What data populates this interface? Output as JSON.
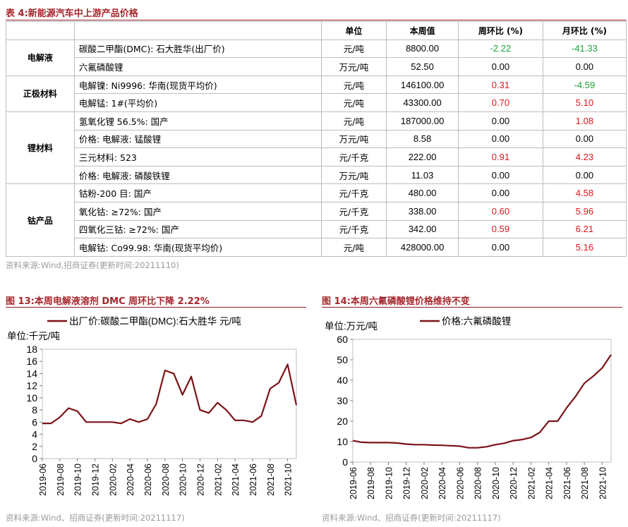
{
  "table": {
    "title": "表 4:新能源汽车中上游产品价格",
    "headers": [
      "单位",
      "本周值",
      "周环比 (%)",
      "月环比 (%)"
    ],
    "groups": [
      {
        "category": "电解液",
        "rows": [
          {
            "item": "碳酸二甲酯(DMC): 石大胜华(出厂价)",
            "unit": "元/吨",
            "value": "8800.00",
            "wow": "-2.22",
            "mom": "-41.33",
            "wow_color": "green",
            "mom_color": "green"
          },
          {
            "item": "六氟磷酸锂",
            "unit": "万元/吨",
            "value": "52.50",
            "wow": "0.00",
            "mom": "0.00",
            "wow_color": "black",
            "mom_color": "black"
          }
        ]
      },
      {
        "category": "正极材料",
        "rows": [
          {
            "item": "电解镍: Ni9996: 华南(现货平均价)",
            "unit": "元/吨",
            "value": "146100.00",
            "wow": "0.31",
            "mom": "-4.59",
            "wow_color": "red",
            "mom_color": "green"
          },
          {
            "item": "电解锰: 1#(平均价)",
            "unit": "元/吨",
            "value": "43300.00",
            "wow": "0.70",
            "mom": "5.10",
            "wow_color": "red",
            "mom_color": "red"
          }
        ]
      },
      {
        "category": "锂材料",
        "rows": [
          {
            "item": "氢氧化锂 56.5%: 国产",
            "unit": "元/吨",
            "value": "187000.00",
            "wow": "0.00",
            "mom": "1.08",
            "wow_color": "black",
            "mom_color": "red"
          },
          {
            "item": "价格: 电解液: 锰酸锂",
            "unit": "万元/吨",
            "value": "8.58",
            "wow": "0.00",
            "mom": "0.00",
            "wow_color": "black",
            "mom_color": "black"
          },
          {
            "item": "三元材料: 523",
            "unit": "元/千克",
            "value": "222.00",
            "wow": "0.91",
            "mom": "4.23",
            "wow_color": "red",
            "mom_color": "red"
          },
          {
            "item": "价格: 电解液: 磷酸铁锂",
            "unit": "万元/吨",
            "value": "11.03",
            "wow": "0.00",
            "mom": "0.00",
            "wow_color": "black",
            "mom_color": "black"
          }
        ]
      },
      {
        "category": "钴产品",
        "rows": [
          {
            "item": "钴粉-200 目: 国产",
            "unit": "元/千克",
            "value": "480.00",
            "wow": "0.00",
            "mom": "4.58",
            "wow_color": "black",
            "mom_color": "red"
          },
          {
            "item": "氧化钴: ≥72%: 国产",
            "unit": "元/千克",
            "value": "338.00",
            "wow": "0.60",
            "mom": "5.96",
            "wow_color": "red",
            "mom_color": "red"
          },
          {
            "item": "四氧化三钴: ≥72%: 国产",
            "unit": "元/千克",
            "value": "342.00",
            "wow": "0.59",
            "mom": "6.21",
            "wow_color": "red",
            "mom_color": "red"
          },
          {
            "item": "电解钴: Co99.98: 华南(现货平均价)",
            "unit": "元/吨",
            "value": "428000.00",
            "wow": "0.00",
            "mom": "5.16",
            "wow_color": "black",
            "mom_color": "red"
          }
        ]
      }
    ],
    "source": "资料来源:Wind,招商证券(更新时间:20211110)"
  },
  "colors": {
    "title": "#a6262c",
    "line": "#7b1218",
    "red": "#e3141c",
    "green": "#1aa13a"
  },
  "chart_data": [
    {
      "type": "line",
      "title": "图 13:本周电解液溶剂 DMC 周环比下降 2.22%",
      "unit_label": "单位:千元/吨",
      "series": [
        {
          "name": "出厂价:碳酸二甲酯(DMC):石大胜华 元/吨",
          "x": [
            "2019-06",
            "2019-07",
            "2019-08",
            "2019-09",
            "2019-10",
            "2019-11",
            "2019-12",
            "2020-01",
            "2020-02",
            "2020-03",
            "2020-04",
            "2020-05",
            "2020-06",
            "2020-07",
            "2020-08",
            "2020-09",
            "2020-10",
            "2020-11",
            "2020-12",
            "2021-01",
            "2021-02",
            "2021-03",
            "2021-04",
            "2021-05",
            "2021-06",
            "2021-07",
            "2021-08",
            "2021-09",
            "2021-10",
            "2021-11"
          ],
          "values": [
            5.8,
            5.8,
            6.8,
            8.3,
            7.8,
            6.0,
            6.0,
            6.0,
            6.0,
            5.8,
            6.5,
            6.0,
            6.5,
            9.0,
            14.5,
            14.0,
            10.5,
            13.5,
            8.0,
            7.5,
            9.2,
            8.0,
            6.3,
            6.3,
            6.0,
            7.0,
            11.5,
            12.5,
            15.5,
            8.8
          ]
        }
      ],
      "x_ticks": [
        "2019-06",
        "2019-08",
        "2019-10",
        "2019-12",
        "2020-02",
        "2020-04",
        "2020-06",
        "2020-08",
        "2020-10",
        "2020-12",
        "2021-02",
        "2021-04",
        "2021-06",
        "2021-08",
        "2021-10"
      ],
      "ylim": [
        0,
        18
      ],
      "y_ticks": [
        0,
        2,
        4,
        6,
        8,
        10,
        12,
        14,
        16,
        18
      ],
      "source": "资料来源:Wind、招商证券(更新时间:20211117)"
    },
    {
      "type": "line",
      "title": "图 14:本周六氟磷酸锂价格维持不变",
      "unit_label": "单位:万元/吨",
      "series": [
        {
          "name": "价格:六氟磷酸锂",
          "x": [
            "2019-06",
            "2019-07",
            "2019-08",
            "2019-09",
            "2019-10",
            "2019-11",
            "2019-12",
            "2020-01",
            "2020-02",
            "2020-03",
            "2020-04",
            "2020-05",
            "2020-06",
            "2020-07",
            "2020-08",
            "2020-09",
            "2020-10",
            "2020-11",
            "2020-12",
            "2021-01",
            "2021-02",
            "2021-03",
            "2021-04",
            "2021-05",
            "2021-06",
            "2021-07",
            "2021-08",
            "2021-09",
            "2021-10",
            "2021-11"
          ],
          "values": [
            10.5,
            9.7,
            9.5,
            9.5,
            9.5,
            9.3,
            8.8,
            8.5,
            8.5,
            8.3,
            8.2,
            8.0,
            7.8,
            7.0,
            7.0,
            7.5,
            8.5,
            9.2,
            10.5,
            11.0,
            12.0,
            14.5,
            20.0,
            20.0,
            26.5,
            32.0,
            38.5,
            42.0,
            46.0,
            52.5
          ]
        }
      ],
      "x_ticks": [
        "2019-06",
        "2019-08",
        "2019-10",
        "2019-12",
        "2020-02",
        "2020-04",
        "2020-06",
        "2020-08",
        "2020-10",
        "2020-12",
        "2021-02",
        "2021-04",
        "2021-06",
        "2021-08",
        "2021-10"
      ],
      "ylim": [
        0,
        60
      ],
      "y_ticks": [
        0,
        10,
        20,
        30,
        40,
        50,
        60
      ],
      "source": "资料来源:Wind、招商证券(更新时间:20211117)"
    }
  ]
}
